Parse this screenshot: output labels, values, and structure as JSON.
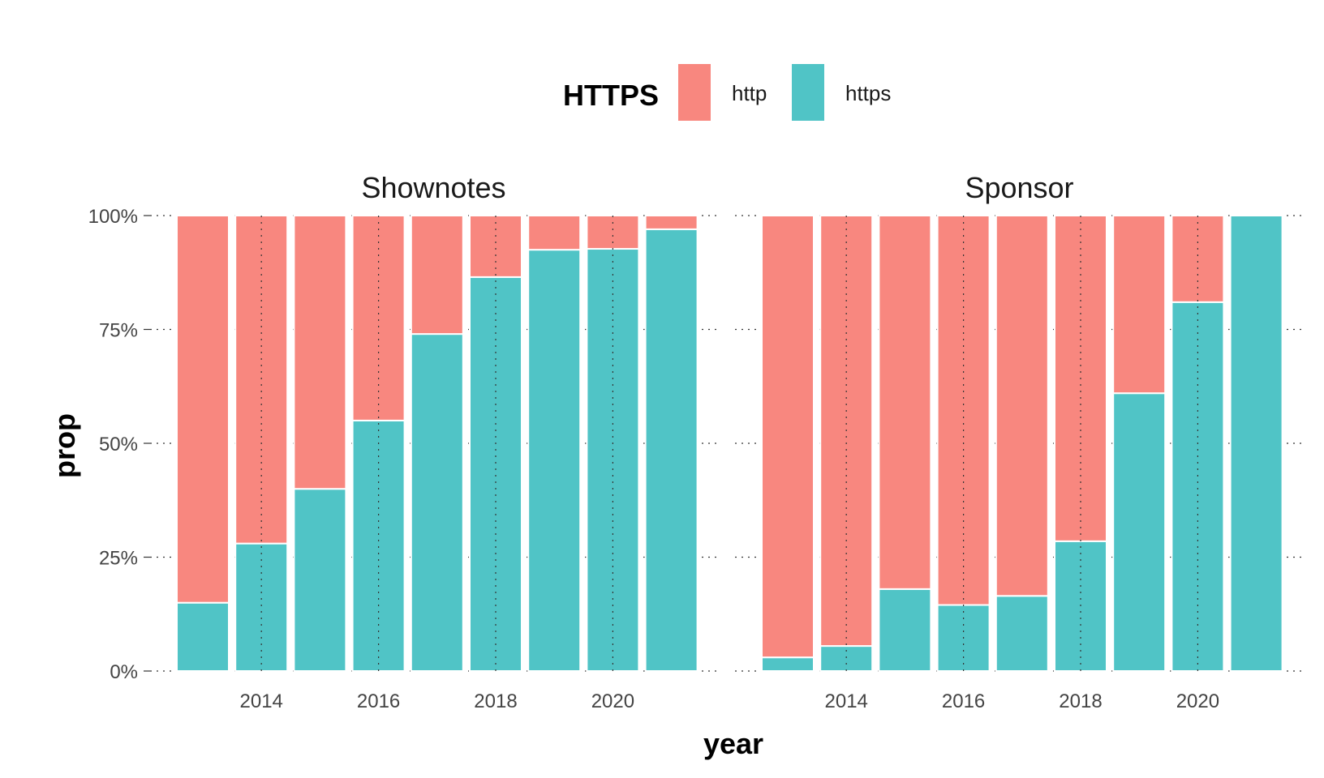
{
  "legend": {
    "title": "HTTPS",
    "items": [
      {
        "label": "http",
        "color": "#F8877F"
      },
      {
        "label": "https",
        "color": "#50C4C6"
      }
    ]
  },
  "axes": {
    "x_title": "year",
    "y_title": "prop",
    "y_ticks": [
      "0%",
      "25%",
      "50%",
      "75%",
      "100%"
    ],
    "x_tick_years": [
      "2014",
      "2016",
      "2018",
      "2020"
    ]
  },
  "chart_data": [
    {
      "type": "bar",
      "title": "Shownotes",
      "stacked": true,
      "xlabel": "year",
      "ylabel": "prop",
      "ylim": [
        0,
        1
      ],
      "categories": [
        2013,
        2014,
        2015,
        2016,
        2017,
        2018,
        2019,
        2020,
        2021
      ],
      "series": [
        {
          "name": "http",
          "values": [
            0.85,
            0.72,
            0.6,
            0.45,
            0.26,
            0.135,
            0.075,
            0.073,
            0.03
          ]
        },
        {
          "name": "https",
          "values": [
            0.15,
            0.28,
            0.4,
            0.55,
            0.74,
            0.865,
            0.925,
            0.927,
            0.97
          ]
        }
      ]
    },
    {
      "type": "bar",
      "title": "Sponsor",
      "stacked": true,
      "xlabel": "year",
      "ylabel": "prop",
      "ylim": [
        0,
        1
      ],
      "categories": [
        2013,
        2014,
        2015,
        2016,
        2017,
        2018,
        2019,
        2020,
        2021
      ],
      "series": [
        {
          "name": "http",
          "values": [
            0.97,
            0.945,
            0.82,
            0.855,
            0.835,
            0.715,
            0.39,
            0.19,
            0.0
          ]
        },
        {
          "name": "https",
          "values": [
            0.03,
            0.055,
            0.18,
            0.145,
            0.165,
            0.285,
            0.61,
            0.81,
            1.0
          ]
        }
      ]
    }
  ]
}
